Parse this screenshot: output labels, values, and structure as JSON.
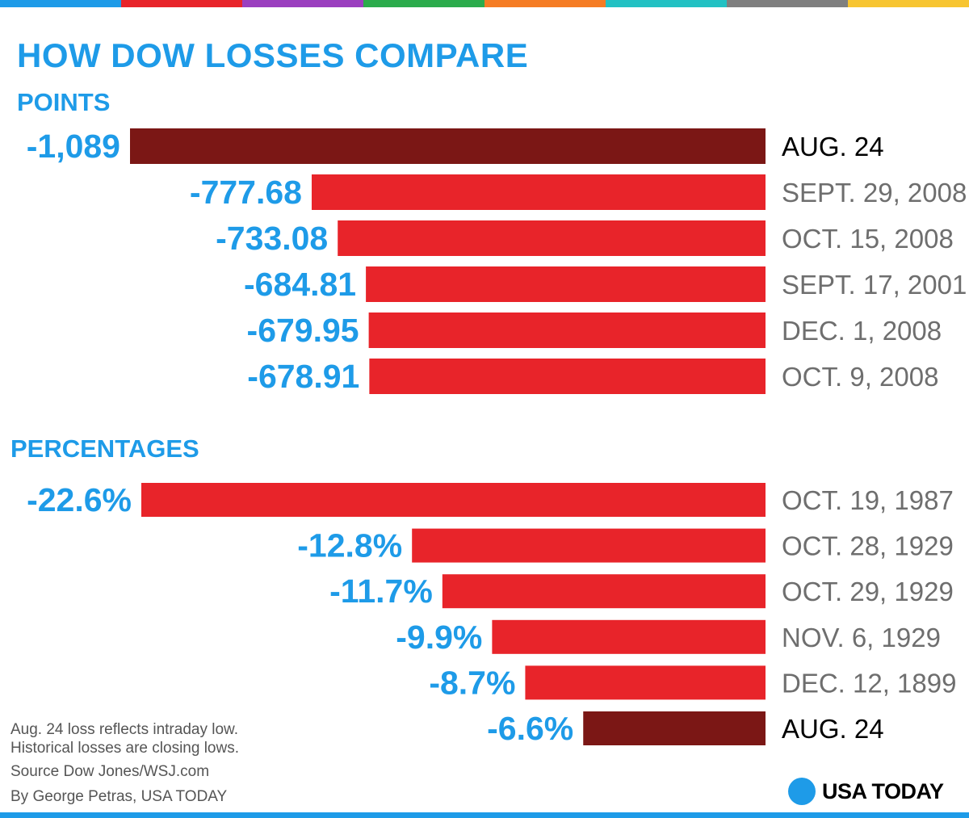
{
  "title": "HOW DOW LOSSES COMPARE",
  "stripe_colors": [
    "#1e9be8",
    "#e8242a",
    "#9b3fbf",
    "#2bab4c",
    "#f57c24",
    "#22c1c3",
    "#7f7f7f",
    "#f7c531"
  ],
  "colors": {
    "accent": "#1e9be8",
    "bar": "#e8242a",
    "bar_highlight": "#7b1715",
    "date_label": "#6e6e6e",
    "date_label_highlight": "#000000"
  },
  "chart_data": [
    {
      "type": "bar",
      "title": "POINTS",
      "orientation": "horizontal",
      "categories": [
        "AUG. 24",
        "SEPT. 29, 2008",
        "OCT. 15, 2008",
        "SEPT. 17, 2001",
        "DEC. 1, 2008",
        "OCT. 9, 2008"
      ],
      "values": [
        -1089,
        -777.68,
        -733.08,
        -684.81,
        -679.95,
        -678.91
      ],
      "value_labels": [
        "-1,089",
        "-777.68",
        "-733.08",
        "-684.81",
        "-679.95",
        "-678.91"
      ],
      "highlight": [
        true,
        false,
        false,
        false,
        false,
        false
      ]
    },
    {
      "type": "bar",
      "title": "PERCENTAGES",
      "orientation": "horizontal",
      "categories": [
        "OCT. 19, 1987",
        "OCT. 28, 1929",
        "OCT. 29, 1929",
        "NOV. 6, 1929",
        "DEC. 12, 1899",
        "AUG. 24"
      ],
      "values": [
        -22.6,
        -12.8,
        -11.7,
        -9.9,
        -8.7,
        -6.6
      ],
      "value_labels": [
        "-22.6%",
        "-12.8%",
        "-11.7%",
        "-9.9%",
        "-8.7%",
        "-6.6%"
      ],
      "highlight": [
        false,
        false,
        false,
        false,
        false,
        true
      ]
    }
  ],
  "footnotes": {
    "note_line1": "Aug. 24 loss reflects intraday low.",
    "note_line2": "Historical losses are closing lows.",
    "source": "Source Dow Jones/WSJ.com",
    "byline": "By George Petras, USA TODAY"
  },
  "logo": {
    "text": "USA TODAY"
  }
}
